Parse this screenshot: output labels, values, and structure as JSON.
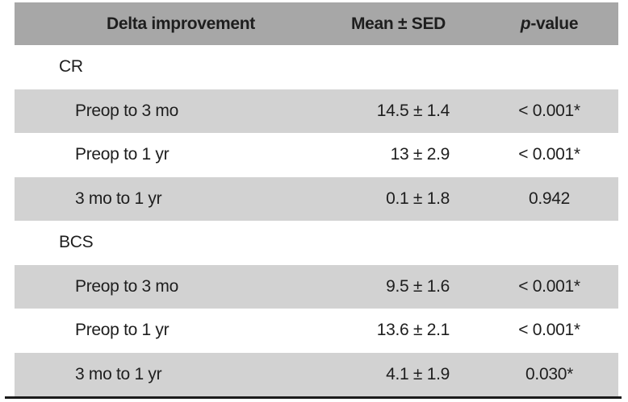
{
  "header": {
    "col1": "Delta improvement",
    "col2": "Mean ± SED",
    "pvalue_italic": "p",
    "pvalue_rest": "-value"
  },
  "rows": [
    {
      "type": "section",
      "label": "CR"
    },
    {
      "type": "data",
      "label": "Preop to 3 mo",
      "mean": "14.5 ± 1.4",
      "p": "< 0.001*"
    },
    {
      "type": "data",
      "label": "Preop to 1 yr",
      "mean": "13 ± 2.9",
      "p": "< 0.001*"
    },
    {
      "type": "data",
      "label": "3 mo to 1 yr",
      "mean": "0.1 ± 1.8",
      "p": "0.942"
    },
    {
      "type": "section",
      "label": "BCS"
    },
    {
      "type": "data",
      "label": "Preop to 3 mo",
      "mean": "9.5 ± 1.6",
      "p": "< 0.001*"
    },
    {
      "type": "data",
      "label": "Preop to 1 yr",
      "mean": "13.6 ± 2.1",
      "p": "< 0.001*"
    },
    {
      "type": "data",
      "label": "3 mo to 1 yr",
      "mean": "4.1 ± 1.9",
      "p": "0.030*"
    }
  ],
  "colors": {
    "header_bg": "#a7a7a7",
    "row_bg": "#d2d2d2",
    "text": "#1e1e1e",
    "rule": "#1a1a1a"
  },
  "chart_data": {
    "type": "table",
    "title": "",
    "columns": [
      "Delta improvement",
      "Mean ± SED",
      "p-value"
    ],
    "sections": [
      {
        "label": "CR",
        "rows": [
          [
            "Preop to 3 mo",
            "14.5 ± 1.4",
            "< 0.001*"
          ],
          [
            "Preop to 1 yr",
            "13 ± 2.9",
            "< 0.001*"
          ],
          [
            "3 mo to 1 yr",
            "0.1 ± 1.8",
            "0.942"
          ]
        ]
      },
      {
        "label": "BCS",
        "rows": [
          [
            "Preop to 3 mo",
            "9.5 ± 1.6",
            "< 0.001*"
          ],
          [
            "Preop to 1 yr",
            "13.6 ± 2.1",
            "< 0.001*"
          ],
          [
            "3 mo to 1 yr",
            "4.1 ± 1.9",
            "0.030*"
          ]
        ]
      }
    ]
  }
}
